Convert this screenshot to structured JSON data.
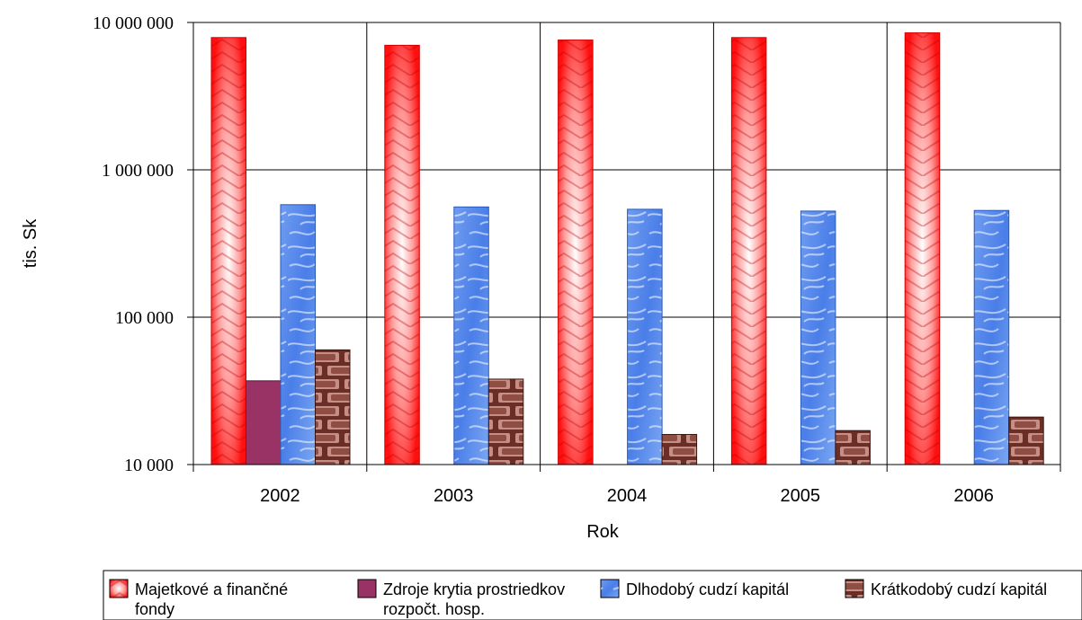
{
  "chart_data": {
    "type": "bar",
    "scale": "log",
    "title": "",
    "xlabel": "Rok",
    "ylabel": "tis. Sk",
    "ylim": [
      10000,
      10000000
    ],
    "yticks": [
      10000,
      100000,
      1000000,
      10000000
    ],
    "ytick_labels": [
      "10 000",
      "100 000",
      "1 000 000",
      "10 000 000"
    ],
    "grid": true,
    "legend_position": "bottom",
    "categories": [
      "2002",
      "2003",
      "2004",
      "2005",
      "2006"
    ],
    "series": [
      {
        "name": "Majetkové a finančné fondy",
        "legend_lines": [
          "Majetkové a finančné",
          "fondy"
        ],
        "color": "#ff2020",
        "values": [
          7900000,
          7000000,
          7600000,
          7900000,
          8500000
        ]
      },
      {
        "name": "Zdroje krytia prostriedkov rozpočt. hosp.",
        "legend_lines": [
          "Zdroje krytia prostriedkov",
          "rozpočt. hosp."
        ],
        "color": "#993366",
        "values": [
          37000,
          null,
          null,
          null,
          null
        ]
      },
      {
        "name": "Dlhodobý cudzí kapitál",
        "legend_lines": [
          "Dlhodobý cudzí kapitál"
        ],
        "color": "#4a7ee8",
        "values": [
          580000,
          560000,
          540000,
          525000,
          530000
        ]
      },
      {
        "name": "Krátkodobý cudzí kapitál",
        "legend_lines": [
          "Krátkodobý cudzí kapitál"
        ],
        "color": "#7a3a30",
        "values": [
          60000,
          38000,
          16000,
          17000,
          21000
        ]
      }
    ]
  }
}
